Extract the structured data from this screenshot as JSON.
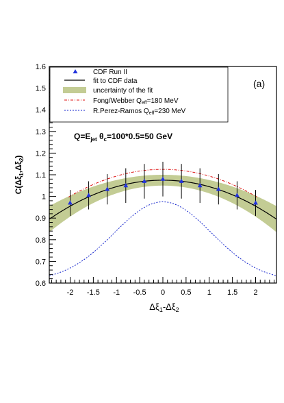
{
  "chart_data": {
    "type": "scatter",
    "panel_label": "(a)",
    "annotation_main": "Q=E",
    "annotation_jet_sub": "jet",
    "annotation_theta": " θ",
    "annotation_c_sub": "c",
    "annotation_rest": "=100*0.5=50 GeV",
    "ylabel": {
      "main": "C(Δξ",
      "sub1": "1",
      "mid": ",Δξ",
      "sub2": "2",
      "end": ")"
    },
    "xlabel": {
      "main": "Δξ",
      "sub1": "1",
      "mid": "-Δξ",
      "sub2": "2"
    },
    "xlim": [
      -2.45,
      2.45
    ],
    "ylim": [
      0.6,
      1.6
    ],
    "xticks": [
      -2,
      -1.5,
      -1,
      -0.5,
      0,
      0.5,
      1,
      1.5,
      2
    ],
    "xtick_labels": [
      "-2",
      "-1.5",
      "-1",
      "-0.5",
      "0",
      "0.5",
      "1",
      "1.5",
      "2"
    ],
    "yticks": [
      0.6,
      0.7,
      0.8,
      0.9,
      1.0,
      1.1,
      1.2,
      1.3,
      1.4,
      1.5,
      1.6
    ],
    "ytick_labels": [
      "0.6",
      "0.7",
      "0.8",
      "0.9",
      "1",
      "1.1",
      "1.2",
      "1.3",
      "1.4",
      "1.5",
      "1.6"
    ],
    "legend": {
      "placement": "top-left",
      "entries": [
        {
          "label": "CDF Run II",
          "type": "marker",
          "color": "#2233dd"
        },
        {
          "label": "fit to CDF data",
          "type": "line",
          "color": "#000000"
        },
        {
          "label": "uncertainty of the fit",
          "type": "band",
          "color": "#c3cc94"
        },
        {
          "label_main": "Fong/Webber Q",
          "label_sub": "eff",
          "label_end": "=180 MeV",
          "type": "dashdot",
          "color": "#dd1111"
        },
        {
          "label_main": "R.Perez-Ramos Q",
          "label_sub": "eff",
          "label_end": "=230 MeV",
          "type": "dashed",
          "color": "#1122cc"
        }
      ]
    },
    "series": [
      {
        "name": "CDF Run II",
        "x": [
          -2.0,
          -1.6,
          -1.2,
          -0.8,
          -0.4,
          0.0,
          0.4,
          0.8,
          1.2,
          1.6,
          2.0
        ],
        "y": [
          0.97,
          1.005,
          1.033,
          1.05,
          1.07,
          1.08,
          1.07,
          1.05,
          1.033,
          1.005,
          0.97
        ],
        "yerr": [
          0.06,
          0.065,
          0.07,
          0.08,
          0.08,
          0.08,
          0.08,
          0.08,
          0.07,
          0.065,
          0.06
        ]
      }
    ],
    "fit": {
      "peak": 1.075,
      "curvature": 0.03
    },
    "band": {
      "half_width_center": 0.025,
      "half_width_edge": 0.06
    },
    "fong_webber": {
      "peak": 1.125,
      "curvature": 0.031
    },
    "perez_ramos": {
      "peak": 0.975,
      "amplitude": 0.365,
      "width": 1.05
    },
    "colors": {
      "marker": "#2233dd",
      "fit": "#000000",
      "band": "#c3cc94",
      "fong_webber": "#dd1111",
      "perez_ramos": "#1122cc"
    }
  }
}
